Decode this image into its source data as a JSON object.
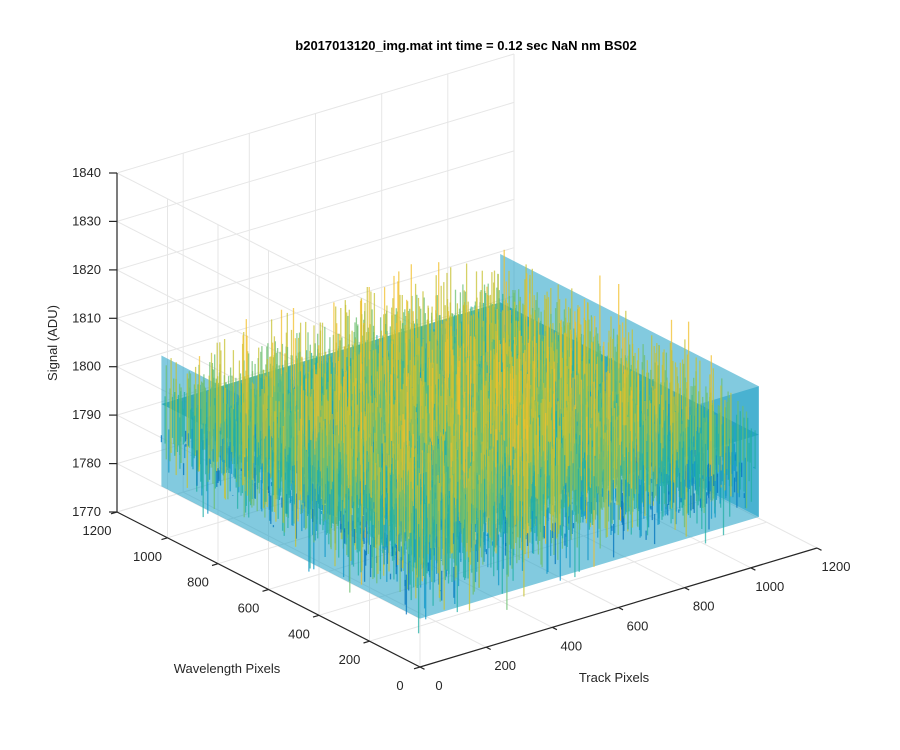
{
  "chart_data": {
    "type": "surface",
    "title": "b2017013120_img.mat int time = 0.12 sec  NaN nm BS02",
    "xlabel": "Track Pixels",
    "ylabel": "Wavelength Pixels",
    "zlabel": "Signal (ADU)",
    "xlim": [
      0,
      1200
    ],
    "ylim": [
      0,
      1200
    ],
    "zlim": [
      1770,
      1840
    ],
    "xticks": [
      "0",
      "200",
      "400",
      "600",
      "800",
      "1000",
      "1200"
    ],
    "yticks": [
      "0",
      "200",
      "400",
      "600",
      "800",
      "1000",
      "1200"
    ],
    "zticks": [
      "1770",
      "1780",
      "1790",
      "1800",
      "1810",
      "1820",
      "1830",
      "1840"
    ],
    "grid": true,
    "surface": {
      "x_range": [
        0,
        1024
      ],
      "y_range": [
        0,
        1024
      ],
      "mean_signal": 1797,
      "typical_range": [
        1780,
        1815
      ],
      "colormap": "parula",
      "colors": [
        "#0072bd",
        "#0f97c9",
        "#23b0a6",
        "#6dbf70",
        "#c8c234",
        "#f2c02c"
      ]
    }
  }
}
